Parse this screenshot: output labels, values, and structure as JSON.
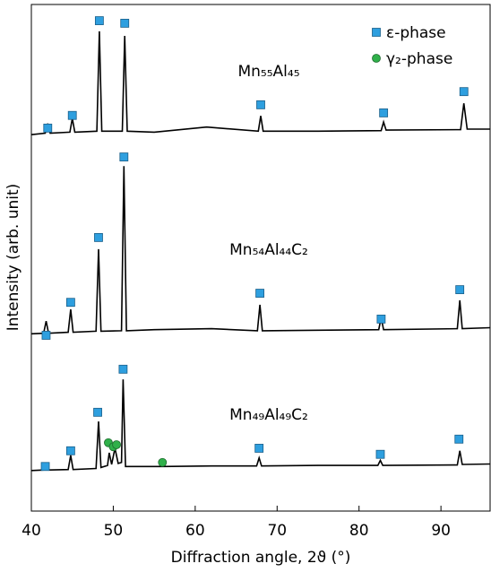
{
  "chart_data": {
    "type": "line",
    "x_label": "Diffraction angle, 2ϑ (°)",
    "y_label": "Intensity (arb. unit)",
    "xlim": [
      40,
      96
    ],
    "xticks": [
      40,
      50,
      60,
      70,
      80,
      90
    ],
    "ylim": [
      0,
      100
    ],
    "series": [
      {
        "name": "Mn₅₅Al₄₅",
        "color": "#000000",
        "x": [
          40,
          41.7,
          42,
          42.3,
          44.7,
          45,
          45.3,
          48.0,
          48.3,
          48.6,
          51.1,
          51.4,
          51.7,
          55,
          61.4,
          67.7,
          68,
          68.3,
          75,
          82.7,
          83,
          83.3,
          92.4,
          92.8,
          93.2,
          96
        ],
        "values": [
          74.3,
          74.6,
          76.5,
          74.6,
          74.8,
          77.5,
          74.8,
          75.0,
          94.7,
          75.0,
          75.0,
          93.8,
          75.0,
          74.8,
          75.8,
          75.0,
          78.0,
          75.0,
          75.0,
          75.1,
          76.8,
          75.2,
          75.3,
          80.5,
          75.4,
          75.4
        ]
      },
      {
        "name": "Mn₅₄Al₄₄C₂",
        "color": "#000000",
        "x": [
          40,
          41.5,
          41.8,
          42.1,
          44.5,
          44.8,
          45.1,
          47.9,
          48.2,
          48.5,
          51.0,
          51.3,
          51.6,
          55,
          62,
          67.6,
          67.9,
          68.2,
          75,
          82.4,
          82.7,
          83.0,
          92.0,
          92.3,
          92.6,
          96
        ],
        "values": [
          35.0,
          35.1,
          37.5,
          35.1,
          35.3,
          39.8,
          35.3,
          35.5,
          51.7,
          35.5,
          35.6,
          68.1,
          35.6,
          35.8,
          36.0,
          35.6,
          40.7,
          35.6,
          35.7,
          35.8,
          38.2,
          35.8,
          36.0,
          41.6,
          36.0,
          36.2
        ]
      },
      {
        "name": "Mn₄₉Al₄₉C₂",
        "color": "#000000",
        "x": [
          40,
          41.5,
          41.8,
          42.1,
          44.5,
          44.8,
          45.1,
          47.9,
          48.2,
          48.5,
          49.3,
          49.5,
          49.8,
          50.2,
          50.6,
          51.0,
          51.2,
          51.5,
          56,
          62,
          67.5,
          67.8,
          68.1,
          75,
          82.3,
          82.6,
          82.9,
          92.0,
          92.3,
          92.6,
          96
        ],
        "values": [
          8.0,
          8.1,
          9.0,
          8.1,
          8.2,
          11.0,
          8.2,
          8.4,
          17.7,
          8.6,
          9.0,
          11.5,
          9.2,
          12.4,
          9.4,
          9.6,
          26.0,
          8.8,
          8.8,
          8.9,
          8.9,
          10.5,
          8.9,
          9.0,
          9.0,
          10.0,
          9.0,
          9.1,
          11.9,
          9.2,
          9.3
        ]
      }
    ],
    "markers": [
      {
        "name": "ε-phase",
        "color": "#2e9fdf",
        "shape": "square",
        "x": [
          42,
          45,
          48.3,
          51.4,
          68,
          83,
          92.8,
          41.8,
          44.8,
          48.2,
          51.3,
          67.9,
          82.7,
          92.3,
          41.7,
          44.8,
          48.1,
          51.2,
          67.8,
          82.6,
          92.2
        ],
        "y": [
          75.6,
          78.1,
          96.8,
          96.3,
          80.2,
          78.6,
          82.8,
          34.7,
          41.2,
          54.0,
          69.9,
          43.0,
          37.9,
          43.7,
          8.8,
          11.9,
          19.5,
          28.0,
          12.4,
          11.2,
          14.2
        ]
      },
      {
        "name": "γ₂-phase",
        "color": "#2fb04a",
        "shape": "circle",
        "x": [
          49.4,
          50.0,
          50.4,
          56.0
        ],
        "y": [
          13.5,
          12.7,
          13.1,
          9.6
        ]
      }
    ]
  }
}
